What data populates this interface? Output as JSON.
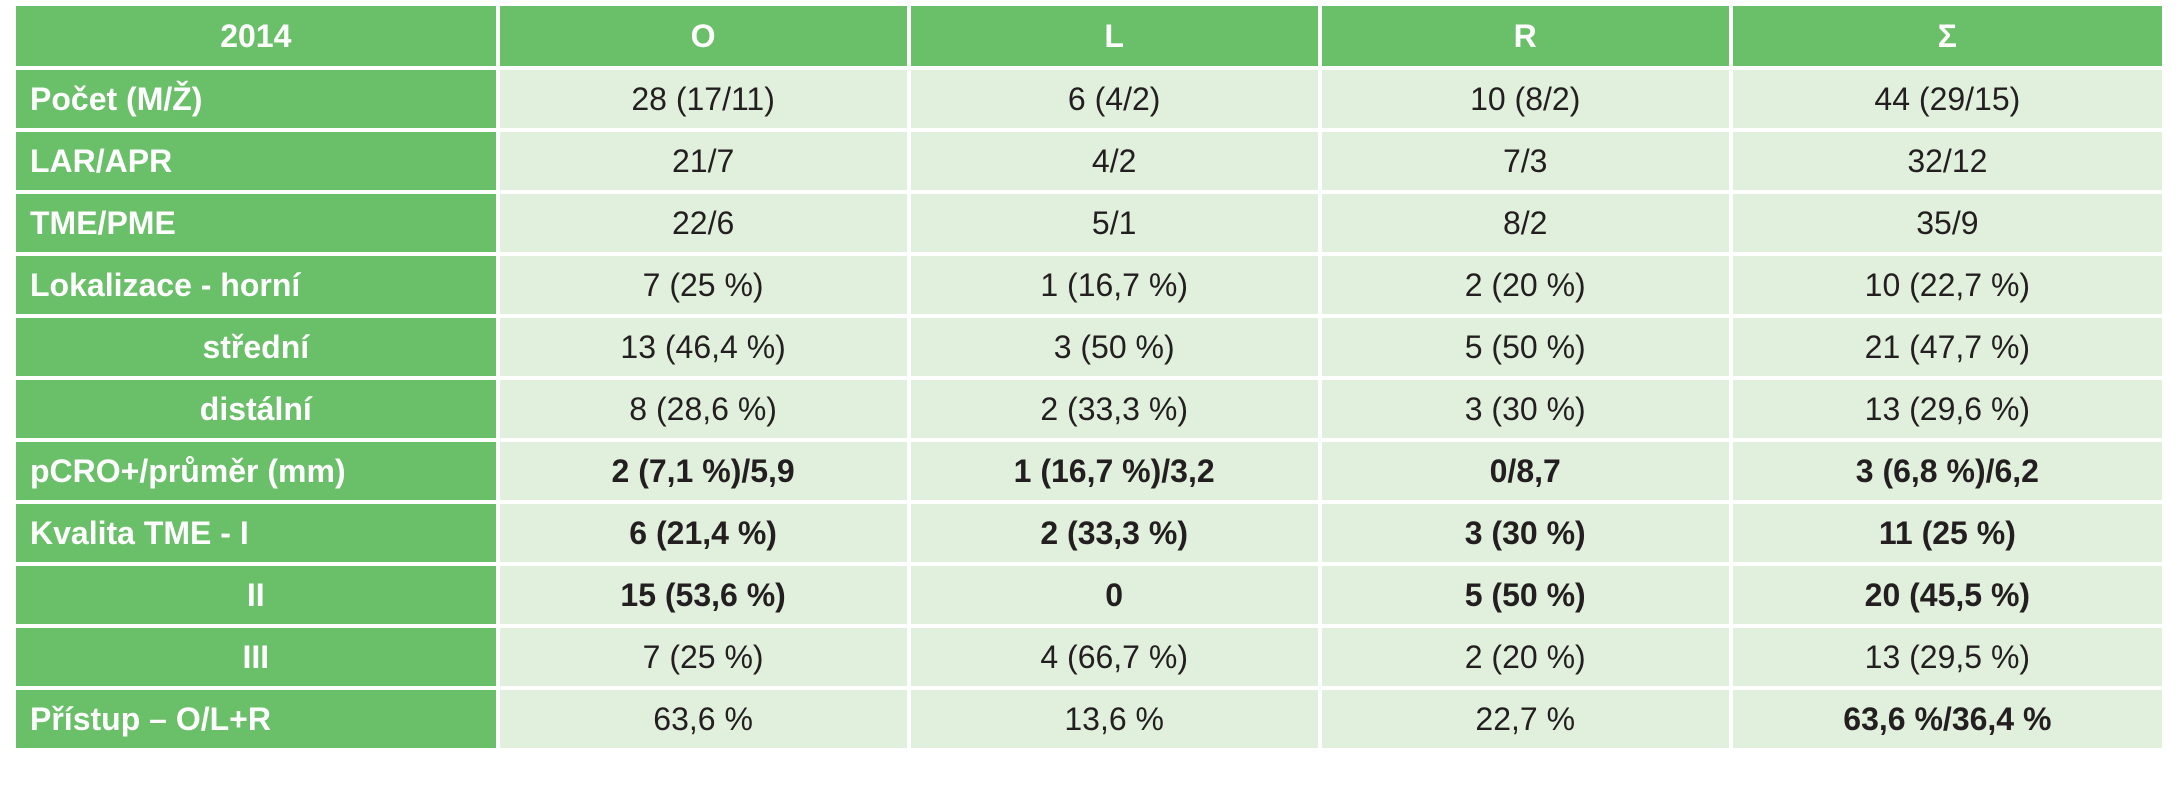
{
  "table": {
    "headers": [
      "2014",
      "O",
      "L",
      "R",
      "Σ"
    ],
    "rows": [
      {
        "label": "Počet (M/Ž)",
        "cells": [
          "28 (17/11)",
          "6 (4/2)",
          "10 (8/2)",
          "44 (29/15)"
        ]
      },
      {
        "label": "LAR/APR",
        "cells": [
          "21/7",
          "4/2",
          "7/3",
          "32/12"
        ]
      },
      {
        "label": "TME/PME",
        "cells": [
          "22/6",
          "5/1",
          "8/2",
          "35/9"
        ]
      },
      {
        "label": "Lokalizace - horní",
        "cells": [
          "7 (25 %)",
          "1 (16,7 %)",
          "2 (20 %)",
          "10 (22,7 %)"
        ]
      },
      {
        "label": "střední",
        "cells": [
          "13 (46,4 %)",
          "3 (50 %)",
          "5 (50 %)",
          "21 (47,7 %)"
        ]
      },
      {
        "label": "distální",
        "cells": [
          "8 (28,6 %)",
          "2 (33,3 %)",
          "3 (30 %)",
          "13 (29,6 %)"
        ]
      },
      {
        "label": "pCRO+/průměr (mm)",
        "cells": [
          "2 (7,1 %)/5,9",
          "1 (16,7 %)/3,2",
          "0/8,7",
          "3 (6,8 %)/6,2"
        ]
      },
      {
        "label": "Kvalita TME - I",
        "cells": [
          "6 (21,4 %)",
          "2 (33,3 %)",
          "3 (30 %)",
          "11 (25 %)"
        ]
      },
      {
        "label": "II",
        "cells": [
          "15 (53,6 %)",
          "0",
          "5 (50 %)",
          "20 (45,5 %)"
        ]
      },
      {
        "label": "III",
        "cells": [
          "7 (25 %)",
          "4 (66,7 %)",
          "2 (20 %)",
          "13 (29,5 %)"
        ]
      },
      {
        "label": "Přístup – O/L+R",
        "cells": [
          "63,6 %",
          "13,6 %",
          "22,7 %",
          "63,6 %/36,4 %"
        ]
      }
    ]
  },
  "colors": {
    "header_green": "#6abf69",
    "cell_bg": "#e1f0dc",
    "header_text": "#ffffff",
    "cell_text": "#231f20"
  }
}
